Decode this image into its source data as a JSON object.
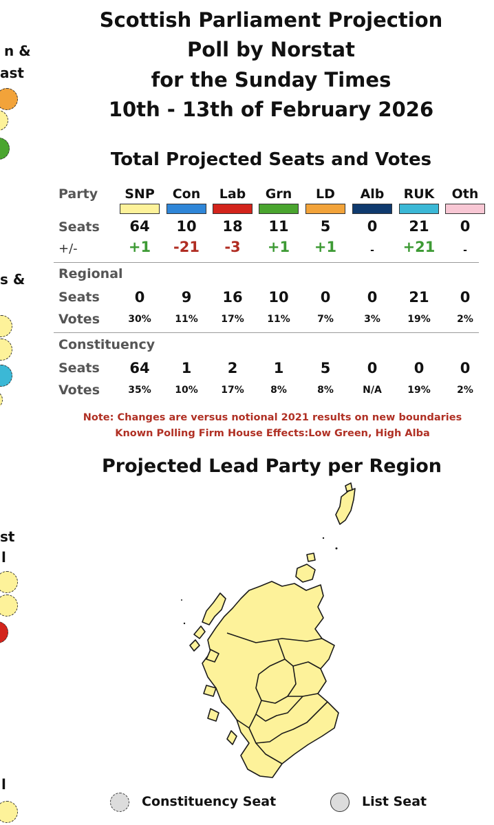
{
  "header": {
    "title_lines": [
      "Scottish Parliament Projection",
      "Poll by Norstat",
      "for the Sunday Times",
      "10th - 13th of February 2026"
    ],
    "subtitle": "Total Projected Seats and Votes"
  },
  "chart_data": {
    "type": "table",
    "row_labels": {
      "party": "Party",
      "seats": "Seats",
      "change": "+/-",
      "regional": "Regional",
      "votes": "Votes",
      "constituency": "Constituency"
    },
    "parties": [
      {
        "name": "SNP",
        "color": "#fdf29a"
      },
      {
        "name": "Con",
        "color": "#2f86d8"
      },
      {
        "name": "Lab",
        "color": "#d3241c"
      },
      {
        "name": "Grn",
        "color": "#4aa52f"
      },
      {
        "name": "LD",
        "color": "#f2a33a"
      },
      {
        "name": "Alb",
        "color": "#0f3a6e"
      },
      {
        "name": "RUK",
        "color": "#3bb8d6"
      },
      {
        "name": "Oth",
        "color": "#f8c7d4"
      }
    ],
    "total_seats": [
      "64",
      "10",
      "18",
      "11",
      "5",
      "0",
      "21",
      "0"
    ],
    "total_change": [
      "+1",
      "-21",
      "-3",
      "+1",
      "+1",
      "-",
      "+21",
      "-"
    ],
    "regional_seats": [
      "0",
      "9",
      "16",
      "10",
      "0",
      "0",
      "21",
      "0"
    ],
    "regional_votes": [
      "30%",
      "11%",
      "17%",
      "11%",
      "7%",
      "3%",
      "19%",
      "2%"
    ],
    "constituency_seats": [
      "64",
      "1",
      "2",
      "1",
      "5",
      "0",
      "0",
      "0"
    ],
    "constituency_votes": [
      "35%",
      "10%",
      "17%",
      "8%",
      "8%",
      "N/A",
      "19%",
      "2%"
    ],
    "colors": {
      "positive": "#3d9a34",
      "negative": "#b02c22",
      "neutral": "#111111"
    }
  },
  "notes": [
    "Note: Changes are versus notional 2021 results on new boundaries",
    "Known Polling Firm House Effects:Low Green, High Alba"
  ],
  "map": {
    "title": "Projected Lead Party per Region",
    "lead_party": "SNP",
    "fill_color": "#fdf29a"
  },
  "left_edge_fragments": [
    "n &",
    "ast",
    "s &",
    "st",
    "l",
    "l"
  ],
  "legend": {
    "constituency_label": "Constituency Seat",
    "list_label": "List Seat"
  }
}
